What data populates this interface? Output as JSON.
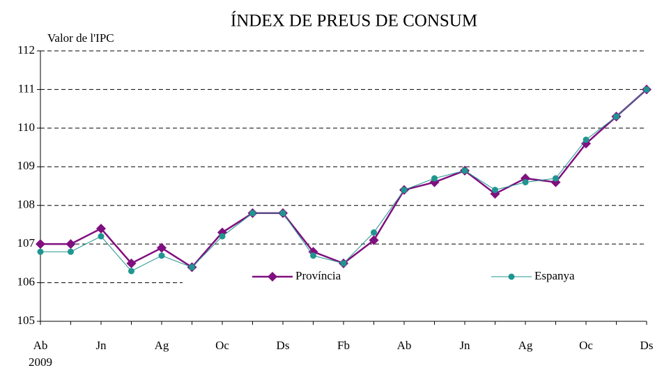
{
  "chart_data": {
    "type": "line",
    "title": "ÍNDEX DE PREUS DE CONSUM",
    "y_label": "Valor de l'IPC",
    "year_label": "2009",
    "categories": [
      "Ab",
      null,
      "Jn",
      null,
      "Ag",
      null,
      "Oc",
      null,
      "Ds",
      null,
      "Fb",
      null,
      "Ab",
      null,
      "Jn",
      null,
      "Ag",
      null,
      "Oc",
      null,
      "Ds"
    ],
    "series": [
      {
        "name": "Província",
        "color": "#800f7f",
        "marker": "diamond",
        "values": [
          107.0,
          107.0,
          107.4,
          106.5,
          106.9,
          106.4,
          107.3,
          107.8,
          107.8,
          106.8,
          106.5,
          107.1,
          108.4,
          108.6,
          108.9,
          108.3,
          108.7,
          108.6,
          109.6,
          110.3,
          111.0
        ]
      },
      {
        "name": "Espanya",
        "color": "#20958f",
        "marker": "circle",
        "values": [
          106.8,
          106.8,
          107.2,
          106.3,
          106.7,
          106.4,
          107.2,
          107.8,
          107.8,
          106.7,
          106.5,
          107.3,
          108.4,
          108.7,
          108.9,
          108.4,
          108.6,
          108.7,
          109.7,
          110.3,
          111.0
        ]
      }
    ],
    "ylim": [
      105,
      112
    ],
    "yticks": [
      105,
      106,
      107,
      108,
      109,
      110,
      111,
      112
    ],
    "grid": true
  }
}
